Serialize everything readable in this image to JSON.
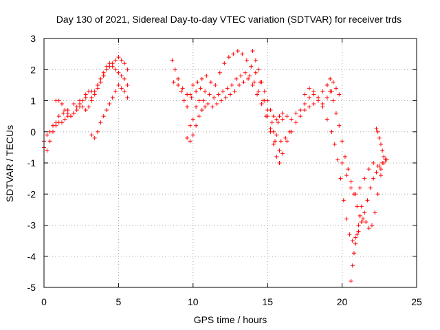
{
  "chart_data": {
    "type": "scatter",
    "title": "Day 130 of 2021, Sidereal Day-to-day VTEC variation (SDTVAR) for receiver trds",
    "xlabel": "GPS time / hours",
    "ylabel": "SDTVAR / TECUs",
    "xlim": [
      0,
      25
    ],
    "ylim": [
      -5,
      3
    ],
    "xticks": [
      0,
      5,
      10,
      15,
      20,
      25
    ],
    "yticks": [
      -5,
      -4,
      -3,
      -2,
      -1,
      0,
      1,
      2,
      3
    ],
    "xtick_labels": [
      "0",
      "5",
      "10",
      "15",
      "20",
      "25"
    ],
    "ytick_labels": [
      "-5",
      "-4",
      "-3",
      "-2",
      "-1",
      "0",
      "1",
      "2",
      "3"
    ],
    "grid": true,
    "marker": "+",
    "color": "#ff0000",
    "series": [
      {
        "x": [
          0.0,
          0.2,
          0.4,
          0.6,
          0.8,
          1.0,
          1.3,
          1.6,
          2.0,
          2.4,
          2.8,
          3.2,
          3.6,
          4.0,
          4.2,
          4.4,
          4.6,
          4.8,
          5.0,
          5.2,
          5.4,
          5.6
        ],
        "y": [
          -0.3,
          -0.1,
          0.0,
          0.2,
          0.3,
          0.5,
          0.6,
          0.7,
          0.9,
          1.0,
          1.1,
          1.3,
          1.5,
          1.8,
          2.0,
          2.1,
          2.2,
          2.3,
          2.4,
          2.3,
          2.2,
          2.0
        ]
      },
      {
        "x": [
          0.0,
          0.2,
          0.4,
          0.6,
          0.8,
          1.0,
          1.2,
          1.4,
          1.6,
          1.8,
          2.0,
          2.2,
          2.4,
          2.6,
          2.8,
          3.0,
          3.2,
          3.4,
          3.6,
          3.8,
          4.0,
          4.2,
          4.4,
          4.6,
          4.8,
          5.0,
          5.2,
          5.4,
          5.6
        ],
        "y": [
          -0.5,
          -0.6,
          -0.3,
          0.0,
          0.2,
          0.3,
          0.3,
          0.4,
          0.5,
          0.5,
          0.6,
          0.7,
          0.8,
          1.0,
          1.2,
          1.3,
          1.1,
          1.3,
          1.5,
          1.7,
          1.9,
          2.1,
          2.2,
          2.1,
          2.0,
          1.9,
          1.8,
          1.7,
          1.5
        ]
      },
      {
        "x": [
          0.8,
          1.0,
          1.2,
          1.4,
          1.6,
          1.8,
          2.0,
          2.2,
          2.4,
          2.6,
          2.8,
          3.0,
          3.2,
          3.4,
          3.6,
          3.8,
          4.0
        ],
        "y": [
          1.0,
          1.0,
          0.9,
          0.7,
          0.6,
          0.5,
          0.6,
          0.8,
          0.9,
          0.8,
          0.7,
          0.8,
          1.0,
          1.2,
          1.4,
          1.6,
          1.8
        ]
      },
      {
        "x": [
          3.2,
          3.4,
          3.6,
          3.8,
          4.0,
          4.2,
          4.4,
          4.6,
          4.8,
          5.0,
          5.2,
          5.4,
          5.6
        ],
        "y": [
          -0.1,
          -0.2,
          0.0,
          0.3,
          0.5,
          0.7,
          0.9,
          1.1,
          1.3,
          1.5,
          1.4,
          1.3,
          1.1
        ]
      },
      {
        "x": [
          8.6,
          8.8,
          9.0,
          9.2,
          9.4,
          9.6,
          9.8,
          10.0,
          10.3,
          10.6,
          10.9,
          11.2,
          11.5,
          11.8,
          12.1,
          12.4,
          12.7,
          13.0,
          13.3,
          13.6,
          13.9,
          14.2,
          14.5,
          14.8,
          15.0,
          15.2,
          15.4,
          15.6,
          15.8,
          16.0
        ],
        "y": [
          2.3,
          2.0,
          1.7,
          1.3,
          1.0,
          0.8,
          1.2,
          1.5,
          1.6,
          1.7,
          1.8,
          1.6,
          1.5,
          1.9,
          2.2,
          2.4,
          2.5,
          2.6,
          2.5,
          2.3,
          2.1,
          1.9,
          1.6,
          1.3,
          1.0,
          0.7,
          0.5,
          0.4,
          0.5,
          0.6
        ]
      },
      {
        "x": [
          8.7,
          9.0,
          9.3,
          9.6,
          9.9,
          10.2,
          10.5,
          10.8,
          11.1,
          11.4,
          11.7,
          12.0,
          12.3,
          12.6,
          12.9,
          13.2,
          13.5,
          13.8,
          14.1,
          14.4,
          14.7,
          15.0,
          15.3,
          15.6,
          15.9,
          16.2,
          16.5
        ],
        "y": [
          1.6,
          1.5,
          1.4,
          1.2,
          1.1,
          1.3,
          1.4,
          1.3,
          1.2,
          1.1,
          1.2,
          1.3,
          1.4,
          1.5,
          1.7,
          1.8,
          1.9,
          1.8,
          1.6,
          1.3,
          1.0,
          0.7,
          0.3,
          -0.1,
          -0.3,
          -0.2,
          0.0
        ]
      },
      {
        "x": [
          9.8,
          10.0,
          10.2,
          10.4,
          10.7,
          11.0,
          11.3,
          11.6,
          11.9,
          12.2,
          12.5,
          12.8,
          13.1,
          13.4,
          13.7,
          14.0,
          14.3,
          14.6,
          14.9,
          15.2,
          15.5,
          15.8
        ],
        "y": [
          0.2,
          0.4,
          0.8,
          1.0,
          1.0,
          0.9,
          0.8,
          0.9,
          1.0,
          1.1,
          1.2,
          1.3,
          1.5,
          1.6,
          1.7,
          1.5,
          1.2,
          0.9,
          0.5,
          0.1,
          -0.3,
          -0.6
        ]
      },
      {
        "x": [
          9.6,
          9.8,
          10.0,
          10.2,
          10.4,
          10.6,
          10.8,
          11.0
        ],
        "y": [
          -0.2,
          -0.3,
          -0.1,
          0.2,
          0.5,
          0.7,
          0.8,
          0.9
        ]
      },
      {
        "x": [
          14.0,
          14.2,
          14.4,
          14.6,
          14.8,
          15.0,
          15.2,
          15.4,
          15.6,
          15.8,
          16.0,
          16.3,
          16.6,
          16.9,
          17.2,
          17.5,
          17.8,
          18.1,
          18.4,
          18.7,
          19.0,
          19.2,
          19.4,
          19.6,
          19.8
        ],
        "y": [
          2.6,
          2.3,
          2.0,
          1.6,
          1.0,
          0.5,
          0.0,
          -0.4,
          -0.8,
          -1.0,
          -0.7,
          -0.3,
          0.0,
          0.3,
          0.5,
          0.7,
          0.8,
          0.9,
          1.1,
          1.3,
          1.5,
          1.7,
          1.6,
          1.4,
          1.2
        ]
      },
      {
        "x": [
          15.4,
          15.7,
          16.0,
          16.3,
          16.6,
          16.9,
          17.2,
          17.5,
          17.8,
          18.1,
          18.4,
          18.7,
          19.0,
          19.3
        ],
        "y": [
          0.0,
          0.3,
          0.4,
          0.5,
          0.4,
          0.6,
          0.7,
          0.9,
          1.1,
          1.2,
          1.0,
          0.9,
          1.1,
          1.3
        ]
      },
      {
        "x": [
          17.5,
          17.8,
          18.1,
          18.4,
          18.7,
          19.0,
          19.3,
          19.5,
          19.7,
          19.9,
          20.1,
          20.3,
          20.5,
          20.7,
          20.9,
          21.1,
          21.3,
          21.5,
          21.7,
          21.9,
          22.1,
          22.3,
          22.5,
          22.7,
          22.9
        ],
        "y": [
          1.2,
          1.4,
          1.3,
          1.1,
          0.8,
          0.4,
          0.0,
          -0.4,
          -0.9,
          -1.5,
          -2.2,
          -2.8,
          -3.3,
          -3.5,
          -3.4,
          -3.2,
          -2.9,
          -2.6,
          -2.2,
          -1.8,
          -1.5,
          -1.3,
          -1.1,
          -1.0,
          -0.9
        ]
      },
      {
        "x": [
          19.0,
          19.2,
          19.4,
          19.6,
          19.8,
          20.0,
          20.2,
          20.4,
          20.6,
          20.8,
          21.0,
          21.2,
          21.4,
          21.6,
          21.8,
          22.0,
          22.2,
          22.4,
          22.6,
          22.8
        ],
        "y": [
          1.5,
          1.3,
          1.0,
          0.6,
          0.2,
          -0.3,
          -0.8,
          -1.2,
          -1.6,
          -2.0,
          -2.4,
          -2.7,
          -2.8,
          -2.9,
          -3.1,
          -3.0,
          -2.6,
          -2.0,
          -1.4,
          -1.0
        ]
      },
      {
        "x": [
          20.0,
          20.3,
          20.6,
          20.9,
          21.2,
          21.5,
          21.8,
          22.1,
          22.4,
          22.6,
          22.8,
          23.0
        ],
        "y": [
          -1.0,
          -1.4,
          -1.8,
          -2.0,
          -1.8,
          -1.5,
          -1.2,
          -1.0,
          -1.1,
          -1.2,
          -1.0,
          -0.9
        ]
      },
      {
        "x": [
          20.6,
          20.7,
          20.8,
          20.9,
          21.0,
          21.1,
          21.2,
          21.3
        ],
        "y": [
          -4.8,
          -4.3,
          -3.9,
          -3.6,
          -3.3,
          -3.0,
          -2.7,
          -2.4
        ]
      },
      {
        "x": [
          22.3,
          22.4,
          22.5,
          22.6,
          22.7,
          22.8,
          22.9
        ],
        "y": [
          0.1,
          0.0,
          -0.2,
          -0.4,
          -0.6,
          -0.8,
          -0.9
        ]
      }
    ]
  }
}
